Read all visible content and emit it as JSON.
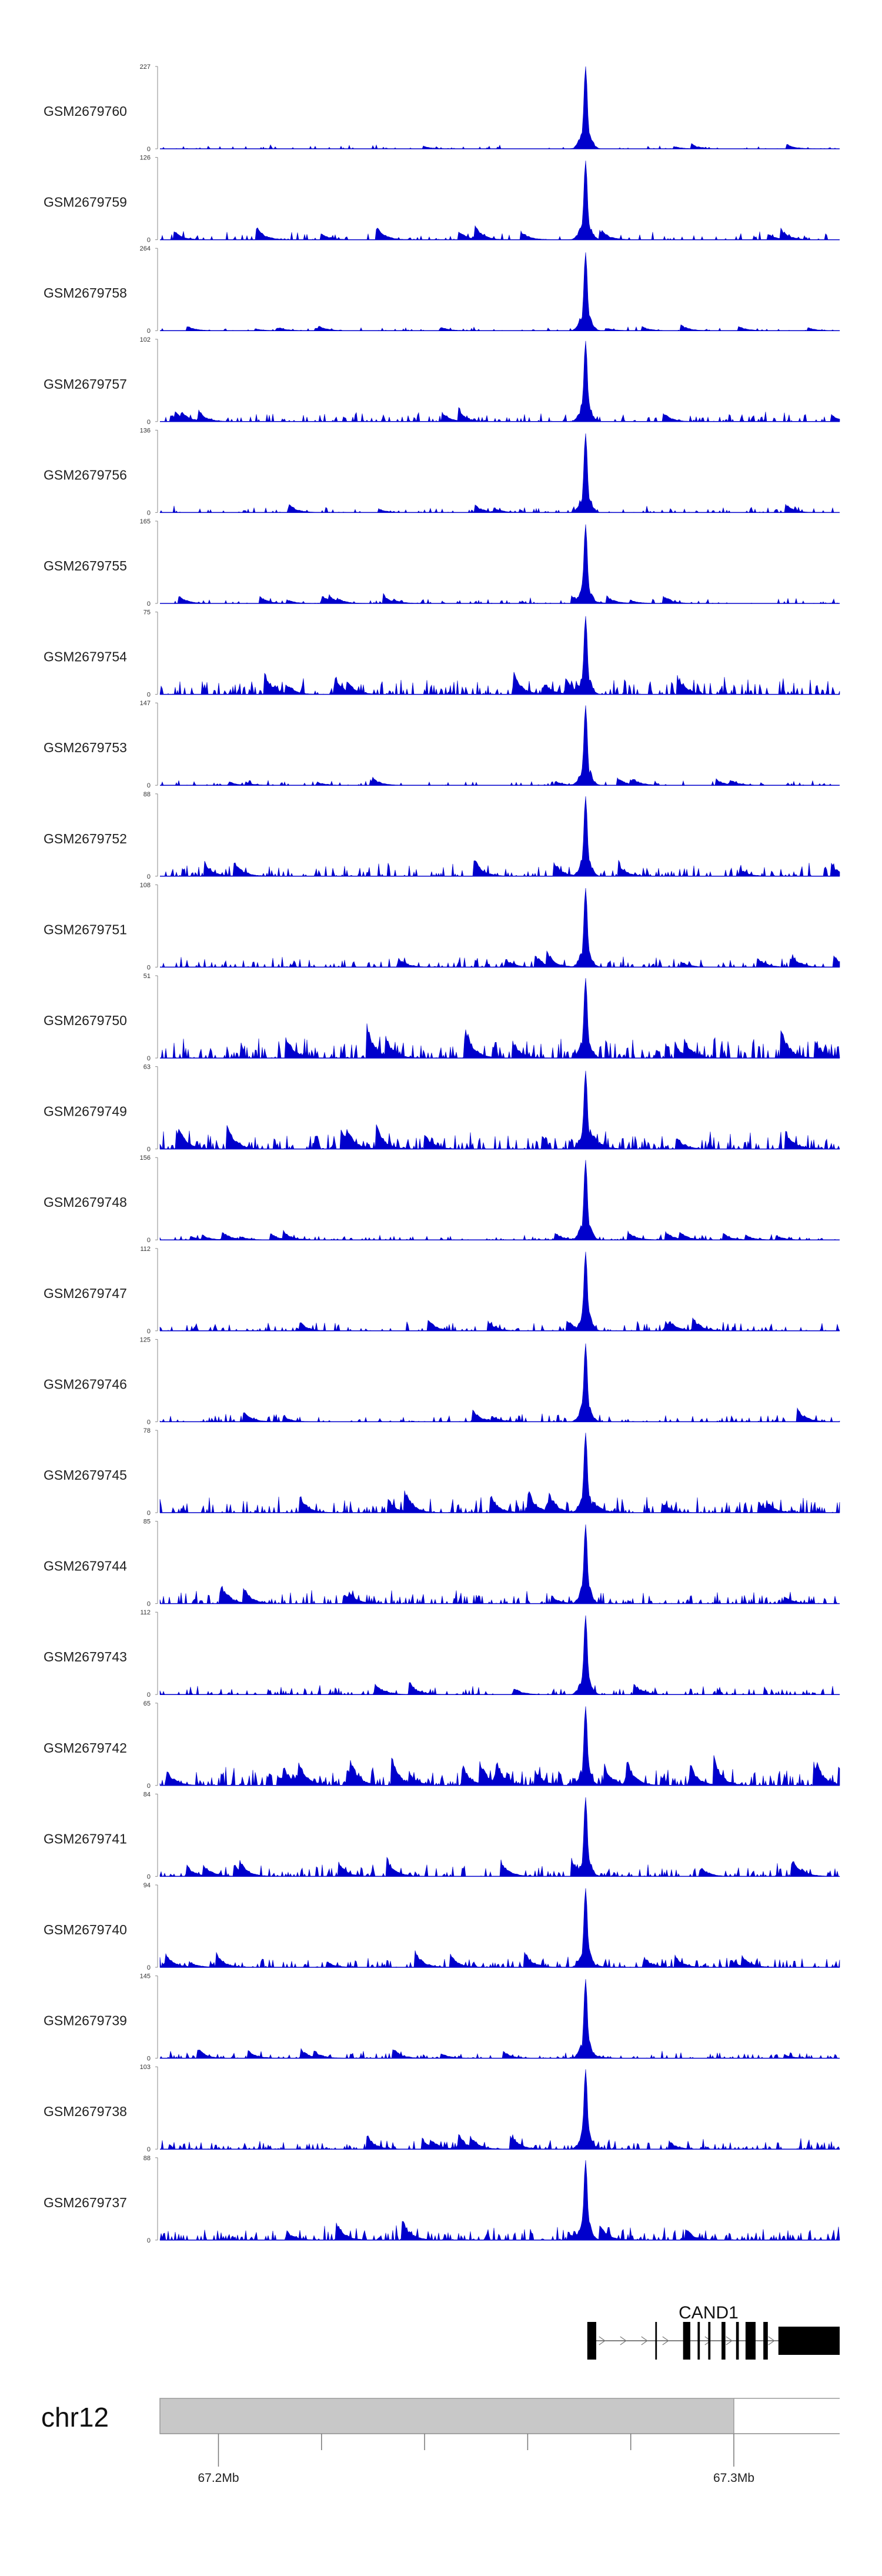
{
  "chart_data": {
    "type": "area",
    "title": "",
    "color": "#0000cc",
    "y_min_label": "0",
    "x_range_mb": [
      67.1895,
      67.3115
    ],
    "peak_position_mb": 67.2659,
    "tracks": [
      {
        "name": "GSM2679760",
        "ymax": 227,
        "peak": 1.0,
        "bg": 0.04,
        "density": 0.3
      },
      {
        "name": "GSM2679759",
        "ymax": 126,
        "peak": 0.96,
        "bg": 0.09,
        "density": 0.35
      },
      {
        "name": "GSM2679758",
        "ymax": 264,
        "peak": 0.95,
        "bg": 0.04,
        "density": 0.3
      },
      {
        "name": "GSM2679757",
        "ymax": 102,
        "peak": 0.98,
        "bg": 0.1,
        "density": 0.55
      },
      {
        "name": "GSM2679756",
        "ymax": 136,
        "peak": 0.96,
        "bg": 0.07,
        "density": 0.4
      },
      {
        "name": "GSM2679755",
        "ymax": 165,
        "peak": 0.96,
        "bg": 0.06,
        "density": 0.4
      },
      {
        "name": "GSM2679754",
        "ymax": 75,
        "peak": 0.95,
        "bg": 0.17,
        "density": 0.75
      },
      {
        "name": "GSM2679753",
        "ymax": 147,
        "peak": 0.97,
        "bg": 0.05,
        "density": 0.35
      },
      {
        "name": "GSM2679752",
        "ymax": 88,
        "peak": 0.97,
        "bg": 0.13,
        "density": 0.6
      },
      {
        "name": "GSM2679751",
        "ymax": 108,
        "peak": 0.96,
        "bg": 0.11,
        "density": 0.6
      },
      {
        "name": "GSM2679750",
        "ymax": 51,
        "peak": 0.97,
        "bg": 0.22,
        "density": 0.9
      },
      {
        "name": "GSM2679749",
        "ymax": 63,
        "peak": 0.95,
        "bg": 0.18,
        "density": 0.8
      },
      {
        "name": "GSM2679748",
        "ymax": 156,
        "peak": 0.97,
        "bg": 0.06,
        "density": 0.45
      },
      {
        "name": "GSM2679747",
        "ymax": 112,
        "peak": 0.96,
        "bg": 0.1,
        "density": 0.6
      },
      {
        "name": "GSM2679746",
        "ymax": 125,
        "peak": 0.95,
        "bg": 0.09,
        "density": 0.5
      },
      {
        "name": "GSM2679745",
        "ymax": 78,
        "peak": 0.97,
        "bg": 0.16,
        "density": 0.8
      },
      {
        "name": "GSM2679744",
        "ymax": 85,
        "peak": 0.96,
        "bg": 0.13,
        "density": 0.7
      },
      {
        "name": "GSM2679743",
        "ymax": 112,
        "peak": 0.96,
        "bg": 0.09,
        "density": 0.6
      },
      {
        "name": "GSM2679742",
        "ymax": 65,
        "peak": 0.96,
        "bg": 0.19,
        "density": 0.9
      },
      {
        "name": "GSM2679741",
        "ymax": 84,
        "peak": 0.96,
        "bg": 0.13,
        "density": 0.7
      },
      {
        "name": "GSM2679740",
        "ymax": 94,
        "peak": 0.96,
        "bg": 0.11,
        "density": 0.7
      },
      {
        "name": "GSM2679739",
        "ymax": 145,
        "peak": 0.96,
        "bg": 0.07,
        "density": 0.55
      },
      {
        "name": "GSM2679738",
        "ymax": 103,
        "peak": 0.97,
        "bg": 0.11,
        "density": 0.7
      },
      {
        "name": "GSM2679737",
        "ymax": 88,
        "peak": 0.97,
        "bg": 0.14,
        "density": 0.75
      }
    ],
    "gene": {
      "name": "CAND1",
      "start_mb": 67.2662,
      "end_mb": 67.3115,
      "exons_mb": [
        [
          67.2662,
          67.2678
        ],
        [
          67.2784,
          67.2787
        ],
        [
          67.2834,
          67.2847
        ],
        [
          67.286,
          67.2864
        ],
        [
          67.2879,
          67.2883
        ],
        [
          67.2903,
          67.291
        ],
        [
          67.2929,
          67.2934
        ],
        [
          67.2946,
          67.2964
        ],
        [
          67.2978,
          67.2986
        ],
        [
          67.3005,
          67.3115
        ]
      ]
    },
    "ideogram": {
      "chromosome": "chr12",
      "axis_range_mb": [
        67.1895,
        67.3115
      ],
      "band_range_mb": [
        67.1895,
        67.2925
      ],
      "ticks_mb": [
        67.2,
        67.2185,
        67.237,
        67.2555,
        67.274,
        67.2925
      ],
      "tick_labels": [
        {
          "mb": 67.2,
          "label": "67.2Mb"
        },
        {
          "mb": 67.2925,
          "label": "67.3Mb"
        }
      ]
    }
  }
}
